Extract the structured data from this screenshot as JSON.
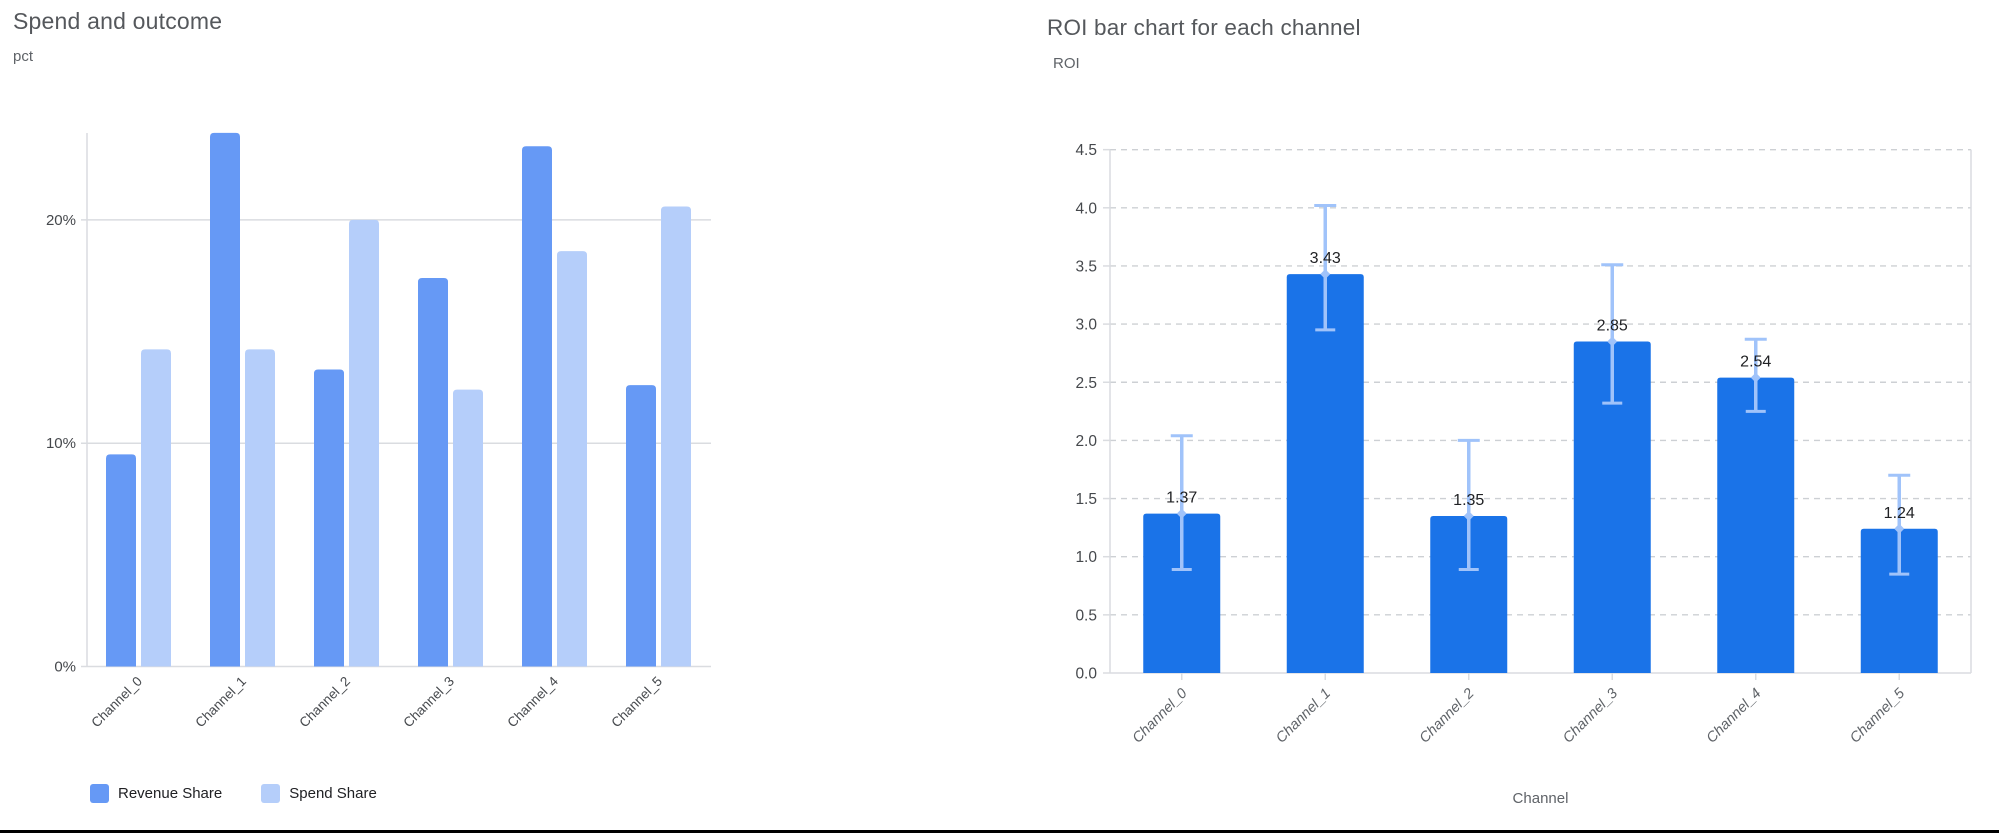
{
  "page": {
    "background": "#ffffff",
    "bottom_border_color": "#000000"
  },
  "chart_data": [
    {
      "type": "bar",
      "title": "Spend and outcome",
      "ylabel": "pct",
      "xlabel": "",
      "categories": [
        "Channel_0",
        "Channel_1",
        "Channel_2",
        "Channel_3",
        "Channel_4",
        "Channel_5"
      ],
      "series": [
        {
          "name": "Revenue Share",
          "color": "#6699F5",
          "values": [
            9.5,
            23.9,
            13.3,
            17.4,
            23.3,
            12.6
          ]
        },
        {
          "name": "Spend Share",
          "color": "#B5CEFA",
          "values": [
            14.2,
            14.2,
            20.0,
            12.4,
            18.6,
            20.6
          ]
        }
      ],
      "y_ticks": {
        "values": [
          0,
          10,
          20
        ],
        "labels": [
          "0%",
          "10%",
          "20%"
        ]
      },
      "ylim": [
        0,
        23.9
      ],
      "grid": "solid-horizontal",
      "legend_position": "bottom",
      "gridline_color": "#dadce0"
    },
    {
      "type": "bar",
      "title": "ROI bar chart for each channel",
      "ylabel": "ROI",
      "xlabel": "Channel",
      "categories": [
        "Channel_0",
        "Channel_1",
        "Channel_2",
        "Channel_3",
        "Channel_4",
        "Channel_5"
      ],
      "values": [
        1.37,
        3.43,
        1.35,
        2.85,
        2.54,
        1.24
      ],
      "data_labels": [
        "1.37",
        "3.43",
        "1.35",
        "2.85",
        "2.54",
        "1.24"
      ],
      "error_low": [
        0.89,
        2.95,
        0.89,
        2.32,
        2.25,
        0.85
      ],
      "error_high": [
        2.04,
        4.02,
        2.0,
        3.51,
        2.87,
        1.7
      ],
      "bar_color": "#1A73E8",
      "error_bar_color": "#A0C3FA",
      "y_ticks": {
        "values": [
          0,
          0.5,
          1,
          1.5,
          2,
          2.5,
          3,
          3.5,
          4,
          4.5
        ],
        "labels": [
          "0.0",
          "0.5",
          "1.0",
          "1.5",
          "2.0",
          "2.5",
          "3.0",
          "3.5",
          "4.0",
          "4.5"
        ]
      },
      "ylim": [
        0,
        4.5
      ],
      "grid": "dashed-horizontal",
      "gridline_color": "#cdd0d4",
      "axis_color": "#dadce0"
    }
  ]
}
